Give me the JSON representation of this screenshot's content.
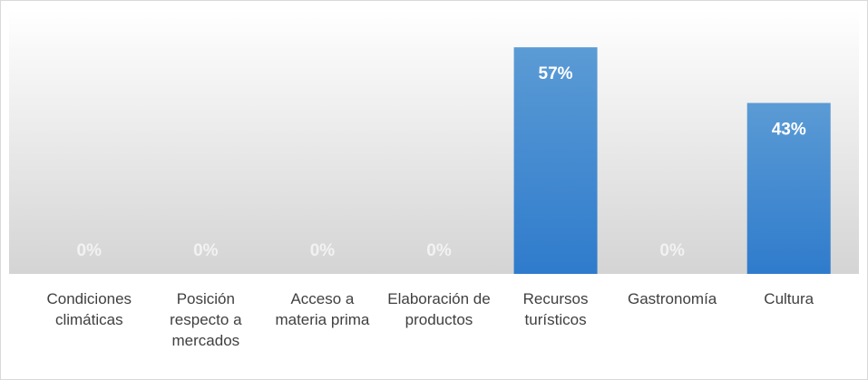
{
  "chart_data": {
    "type": "bar",
    "categories": [
      "Condiciones climáticas",
      "Posición respecto a mercados",
      "Acceso a materia prima",
      "Elaboración de productos",
      "Recursos turísticos",
      "Gastronomía",
      "Cultura"
    ],
    "values": [
      0,
      0,
      0,
      0,
      57,
      0,
      43
    ],
    "value_labels": [
      "0%",
      "0%",
      "0%",
      "0%",
      "57%",
      "0%",
      "43%"
    ],
    "color": "#3f86d0",
    "ylim": [
      0,
      60
    ]
  }
}
